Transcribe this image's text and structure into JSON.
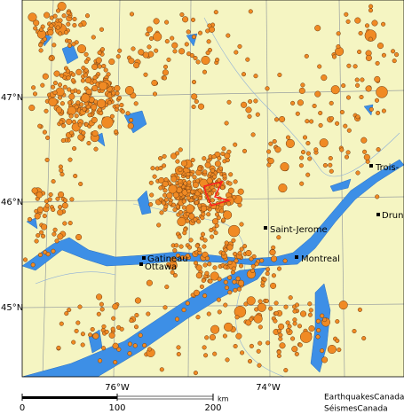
{
  "map": {
    "lat_labels": [
      "47°N",
      "46°N",
      "45°N"
    ],
    "lon_labels": [
      "76°W",
      "74°W"
    ],
    "cities": [
      "Trois-",
      "Drun",
      "Saint-Jerome",
      "Montreal",
      "Gatineau",
      "Ottawa"
    ],
    "scale": {
      "ticks": [
        0,
        100,
        200
      ],
      "unit": "km"
    },
    "credit": [
      "EarthquakesCanada",
      "SéismesCanada"
    ]
  }
}
